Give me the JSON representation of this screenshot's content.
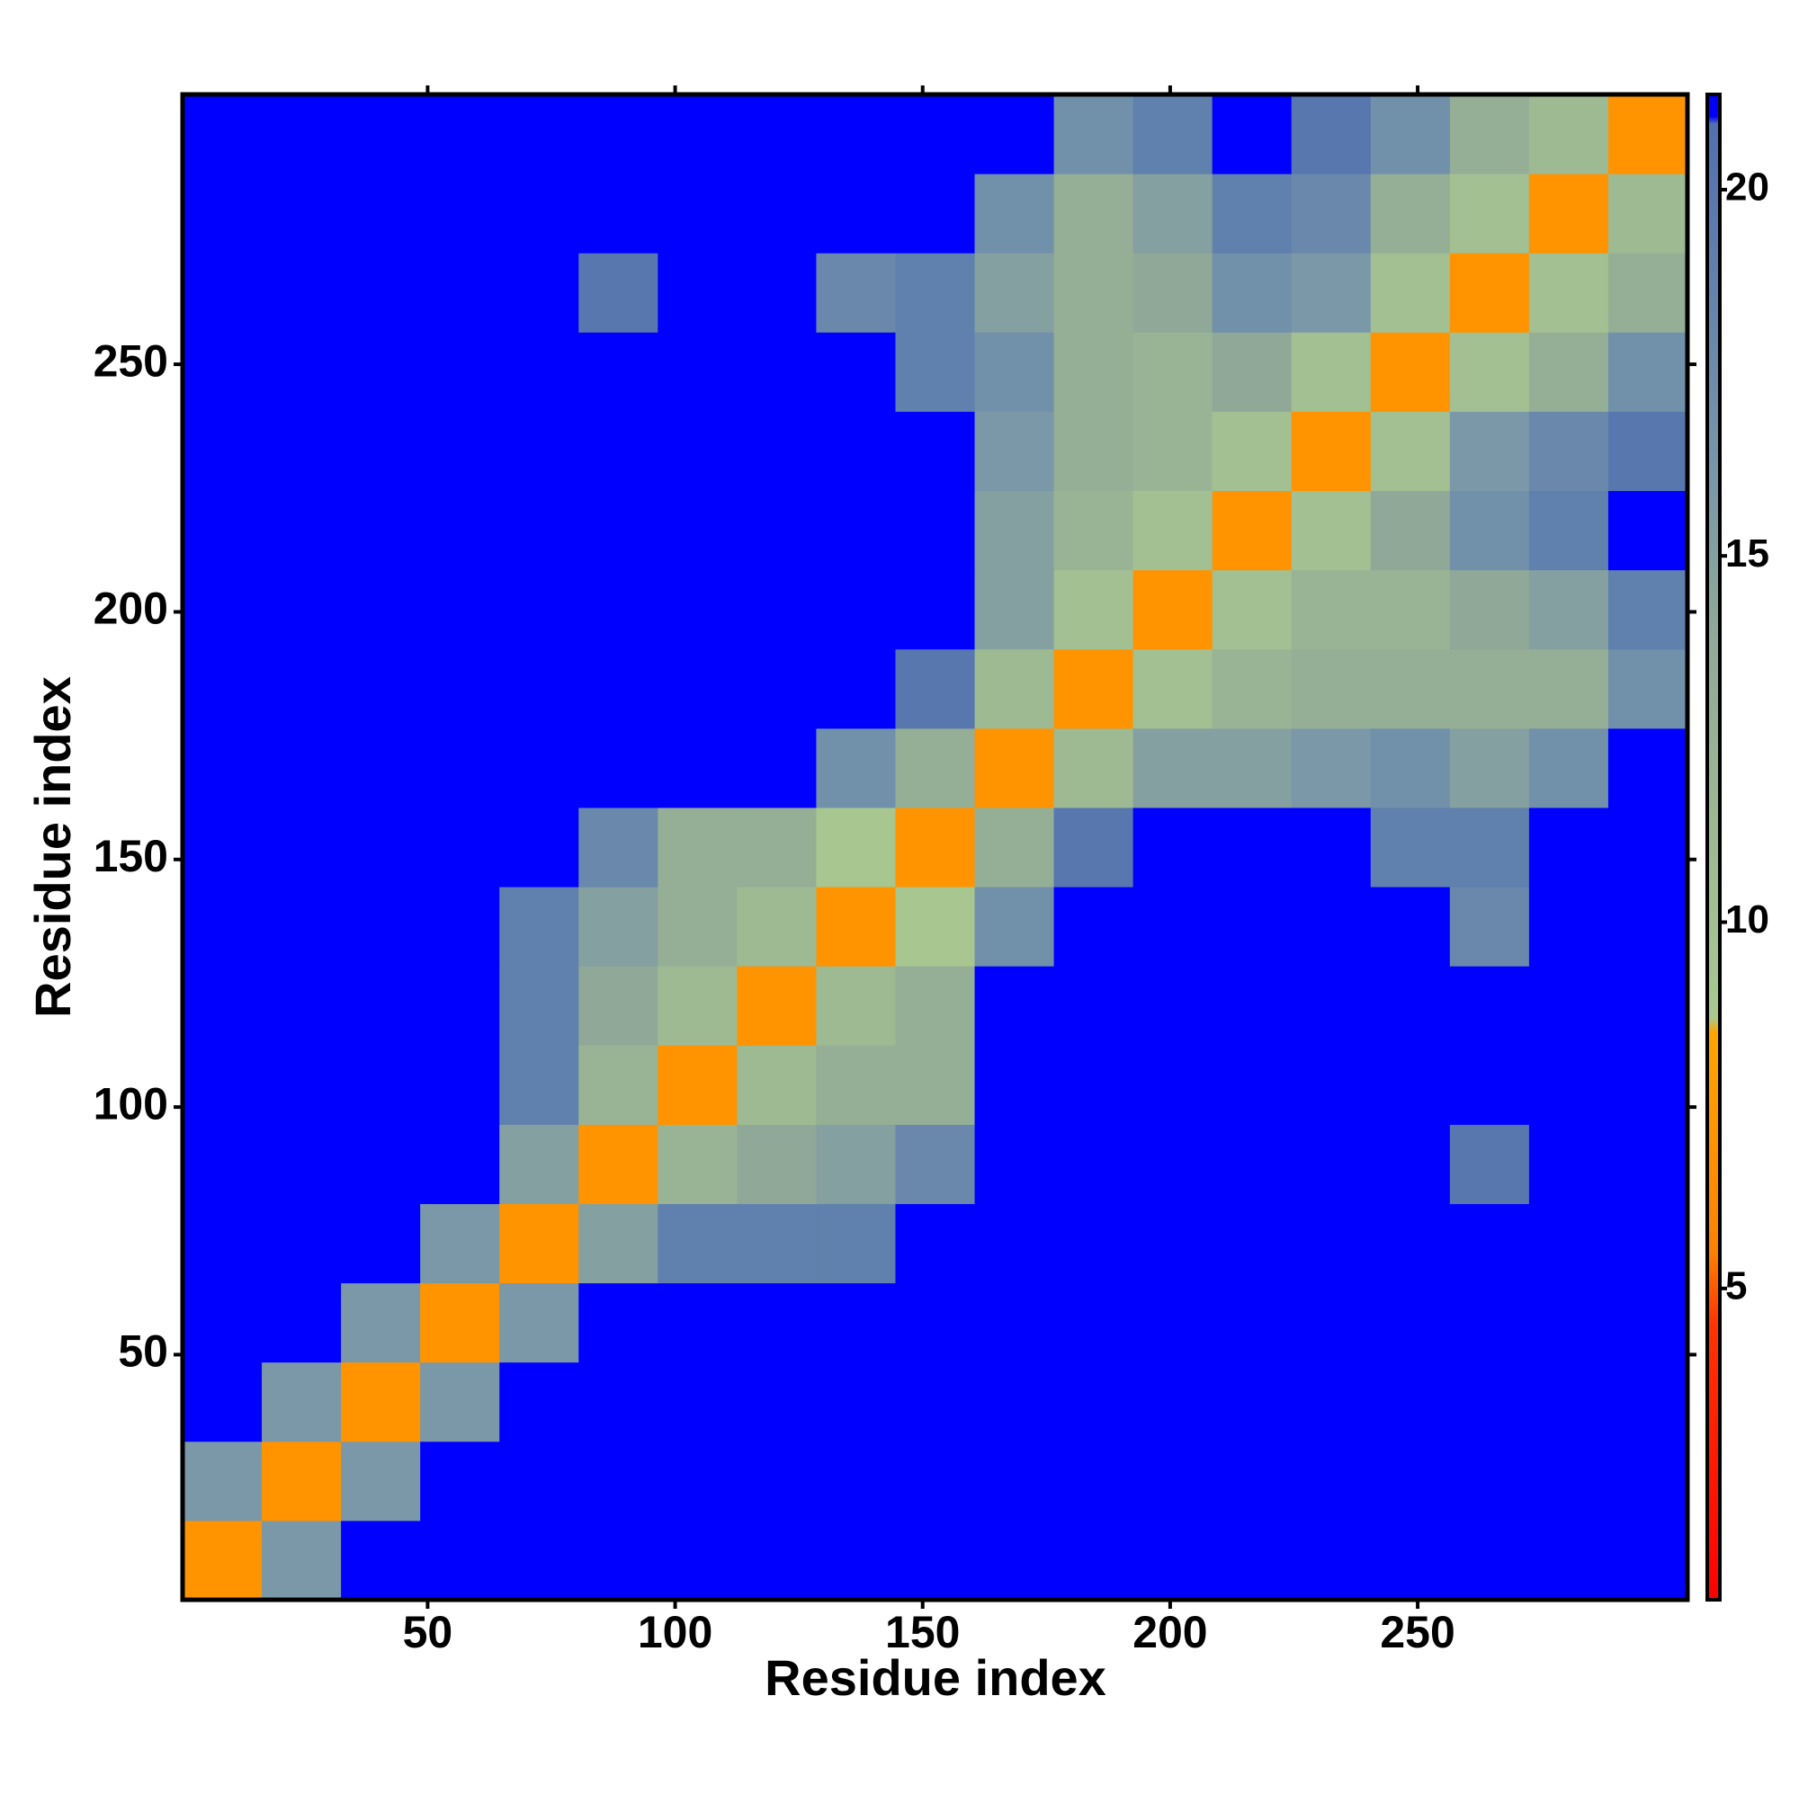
{
  "chart_data": {
    "type": "heatmap",
    "xlabel": "Residue index",
    "ylabel": "Residue index",
    "x_bins": [
      0.5,
      16.5,
      32.5,
      48.5,
      64.5,
      80.5,
      96.5,
      112.5,
      128.5,
      144.5,
      160.5,
      176.5,
      192.5,
      208.5,
      224.5,
      240.5,
      256.5,
      272.5,
      288.5,
      304.5
    ],
    "y_bins": [
      0.5,
      16.5,
      32.5,
      48.5,
      64.5,
      80.5,
      96.5,
      112.5,
      128.5,
      144.5,
      160.5,
      176.5,
      192.5,
      208.5,
      224.5,
      240.5,
      256.5,
      272.5,
      288.5,
      304.5
    ],
    "z": [
      [
        7,
        16,
        21,
        21,
        21,
        21,
        21,
        21,
        21,
        21,
        21,
        21,
        21,
        21,
        21,
        21,
        21,
        21,
        21
      ],
      [
        16,
        7,
        16,
        21,
        21,
        21,
        21,
        21,
        21,
        21,
        21,
        21,
        21,
        21,
        21,
        21,
        21,
        21,
        21
      ],
      [
        21,
        16,
        7,
        16,
        21,
        21,
        21,
        21,
        21,
        21,
        21,
        21,
        21,
        21,
        21,
        21,
        21,
        21,
        21
      ],
      [
        21,
        21,
        16,
        7,
        16,
        21,
        21,
        21,
        21,
        21,
        21,
        21,
        21,
        21,
        21,
        21,
        21,
        21,
        21
      ],
      [
        21,
        21,
        21,
        16,
        7,
        15,
        19,
        19,
        19,
        21,
        21,
        21,
        21,
        21,
        21,
        21,
        21,
        21,
        21
      ],
      [
        21,
        21,
        21,
        21,
        15,
        7,
        12,
        14,
        15,
        18,
        21,
        21,
        21,
        21,
        21,
        21,
        20,
        21,
        21
      ],
      [
        21,
        21,
        21,
        21,
        19,
        12,
        7,
        11,
        13,
        13,
        21,
        21,
        21,
        21,
        21,
        21,
        21,
        21,
        21
      ],
      [
        21,
        21,
        21,
        21,
        19,
        14,
        11,
        7,
        11,
        13,
        21,
        21,
        21,
        21,
        21,
        21,
        21,
        21,
        21
      ],
      [
        21,
        21,
        21,
        21,
        19,
        15,
        13,
        11,
        7,
        9,
        17,
        21,
        21,
        21,
        21,
        21,
        18,
        21,
        21
      ],
      [
        21,
        21,
        21,
        21,
        21,
        18,
        13,
        13,
        9,
        7,
        13,
        20,
        21,
        21,
        21,
        19,
        19,
        21,
        21
      ],
      [
        21,
        21,
        21,
        21,
        21,
        21,
        21,
        21,
        17,
        13,
        7,
        11,
        15,
        15,
        16,
        17,
        15,
        17,
        21
      ],
      [
        21,
        21,
        21,
        21,
        21,
        21,
        21,
        21,
        21,
        20,
        11,
        7,
        10,
        12,
        13,
        13,
        13,
        13,
        17
      ],
      [
        21,
        21,
        21,
        21,
        21,
        21,
        21,
        21,
        21,
        21,
        15,
        10,
        7,
        10,
        12,
        12,
        14,
        15,
        19
      ],
      [
        21,
        21,
        21,
        21,
        21,
        21,
        21,
        21,
        21,
        21,
        15,
        12,
        10,
        7,
        10,
        14,
        17,
        19,
        21
      ],
      [
        21,
        21,
        21,
        21,
        21,
        21,
        21,
        21,
        21,
        21,
        16,
        13,
        12,
        10,
        7,
        10,
        16,
        18,
        20
      ],
      [
        21,
        21,
        21,
        21,
        21,
        21,
        21,
        21,
        21,
        19,
        17,
        13,
        12,
        14,
        10,
        7,
        10,
        13,
        17
      ],
      [
        21,
        21,
        21,
        21,
        21,
        20,
        21,
        21,
        18,
        19,
        15,
        13,
        14,
        17,
        16,
        10,
        7,
        10,
        13
      ],
      [
        21,
        21,
        21,
        21,
        21,
        21,
        21,
        21,
        21,
        21,
        17,
        13,
        15,
        19,
        18,
        13,
        10,
        7,
        11
      ],
      [
        21,
        21,
        21,
        21,
        21,
        21,
        21,
        21,
        21,
        21,
        21,
        17,
        19,
        21,
        20,
        17,
        13,
        11,
        7
      ]
    ],
    "xlim": [
      0.5,
      304.5
    ],
    "ylim": [
      0.5,
      304.5
    ],
    "xticks": [
      50,
      100,
      150,
      200,
      250
    ],
    "yticks": [
      50,
      100,
      150,
      200,
      250
    ],
    "clim": [
      0.75,
      21.3
    ],
    "cticks": [
      5,
      10,
      15,
      20
    ],
    "colorscale": [
      [
        0.75,
        "#ff0000"
      ],
      [
        4.5,
        "#ff3300"
      ],
      [
        5.5,
        "#ff8000"
      ],
      [
        8.5,
        "#ffa500"
      ],
      [
        8.7,
        "#a8c890"
      ],
      [
        14,
        "#90a898"
      ],
      [
        16,
        "#7a98a8"
      ],
      [
        20.9,
        "#5070b0"
      ],
      [
        21,
        "#0000ff"
      ],
      [
        21.3,
        "#0000ff"
      ]
    ]
  }
}
